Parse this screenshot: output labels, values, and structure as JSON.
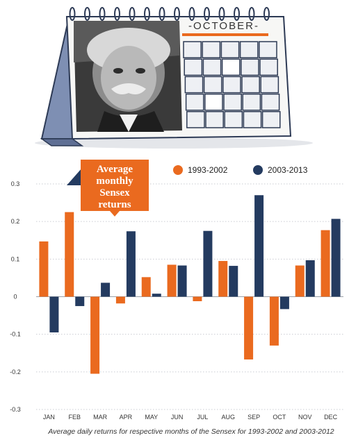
{
  "illustration": {
    "month": "-OCTOBER-",
    "colors": {
      "accent": "#ea6a1f",
      "navy": "#243b60",
      "stand": "#7e8fb3"
    }
  },
  "chart_data": {
    "type": "bar",
    "title": [
      "Average",
      "monthly",
      "Sensex",
      "returns"
    ],
    "categories": [
      "JAN",
      "FEB",
      "MAR",
      "APR",
      "MAY",
      "JUN",
      "JUL",
      "AUG",
      "SEP",
      "OCT",
      "NOV",
      "DEC"
    ],
    "series": [
      {
        "name": "1993-2002",
        "color": "#ea6a1f",
        "values": [
          0.147,
          0.225,
          -0.205,
          -0.018,
          0.052,
          0.085,
          -0.012,
          0.095,
          -0.167,
          -0.13,
          0.083,
          0.177
        ]
      },
      {
        "name": "2003-2013",
        "color": "#243b60",
        "values": [
          -0.095,
          -0.025,
          0.037,
          0.174,
          0.008,
          0.083,
          0.175,
          0.082,
          0.27,
          -0.033,
          0.097,
          0.207
        ]
      }
    ],
    "yticks": [
      "0.3",
      "0.2",
      "0.1",
      "0",
      "-0.1",
      "-0.2",
      "-0.3"
    ],
    "ylim": [
      -0.3,
      0.3
    ],
    "legend": "top-right",
    "grid": true,
    "caption": "Average daily returns for respective months of the Sensex for 1993-2002 and 2003-2012"
  }
}
